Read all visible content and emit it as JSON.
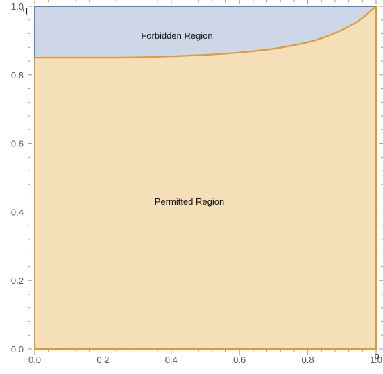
{
  "chart_data": {
    "type": "area",
    "title": "",
    "xlabel": "p",
    "ylabel": "q",
    "xlim": [
      0,
      1
    ],
    "ylim": [
      0,
      1
    ],
    "x_ticks": [
      0,
      0.2,
      0.4,
      0.6,
      0.8,
      1.0
    ],
    "x_tick_labels": [
      "0.0",
      "0.2",
      "0.4",
      "0.6",
      "0.8",
      "1.0"
    ],
    "y_ticks": [
      0,
      0.2,
      0.4,
      0.6,
      0.8,
      1.0
    ],
    "y_tick_labels": [
      "0.0",
      "0.2",
      "0.4",
      "0.6",
      "0.8",
      "1.0"
    ],
    "grid": false,
    "regions": [
      {
        "label": "Forbidden Region",
        "color": "#cdd7e8",
        "edge_color": "#5b7fb8",
        "bounds": "above boundary curve, below q = 1"
      },
      {
        "label": "Permitted Region",
        "color": "#f5dfb9",
        "edge_color": "#e09b2d",
        "bounds": "below boundary curve, above q = 0"
      }
    ],
    "boundary_curve": {
      "x": [
        0,
        0.1,
        0.2,
        0.3,
        0.4,
        0.5,
        0.6,
        0.7,
        0.8,
        0.85,
        0.9,
        0.95,
        1.0
      ],
      "y": [
        0.85,
        0.85,
        0.85,
        0.851,
        0.854,
        0.858,
        0.865,
        0.876,
        0.895,
        0.91,
        0.931,
        0.958,
        1.0
      ]
    }
  }
}
